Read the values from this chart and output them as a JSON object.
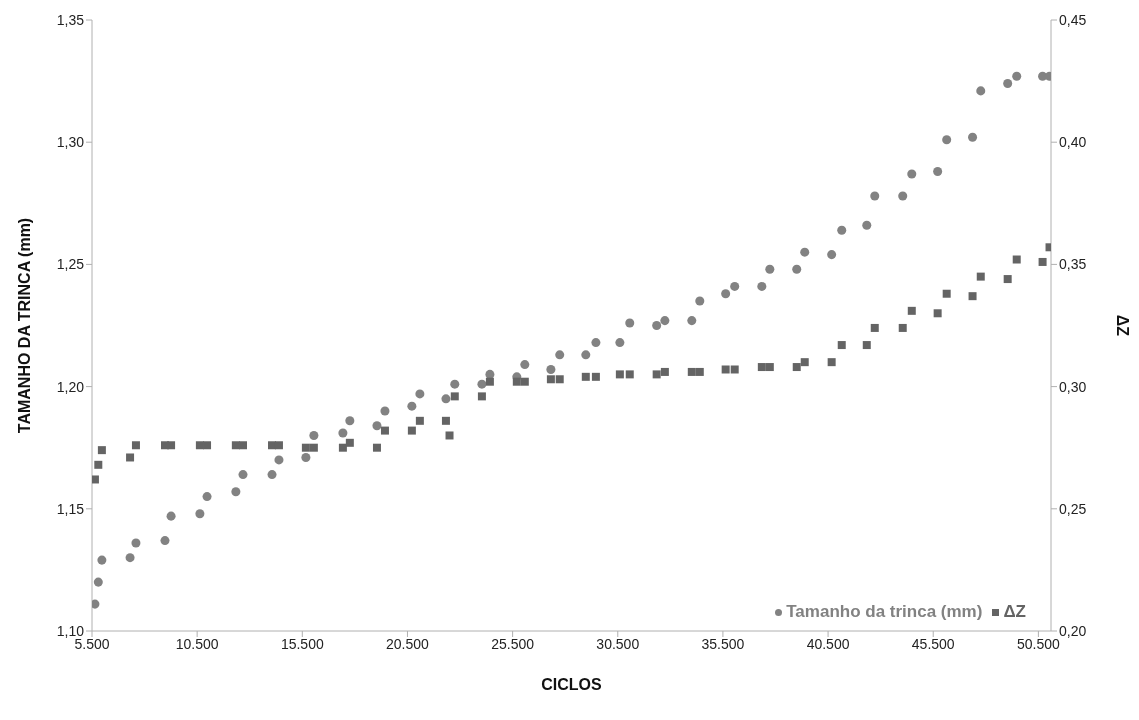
{
  "chart_data": {
    "type": "scatter",
    "xlabel": "CICLOS",
    "ylabel": "TAMANHO DA TRINCA (mm)",
    "y2label": "ΔZ",
    "xlim": [
      5500,
      51100
    ],
    "xticks": [
      {
        "value": 5500,
        "label": "5.500"
      },
      {
        "value": 10500,
        "label": "10.500"
      },
      {
        "value": 15500,
        "label": "15.500"
      },
      {
        "value": 20500,
        "label": "20.500"
      },
      {
        "value": 25500,
        "label": "25.500"
      },
      {
        "value": 30500,
        "label": "30.500"
      },
      {
        "value": 35500,
        "label": "35.500"
      },
      {
        "value": 40500,
        "label": "40.500"
      },
      {
        "value": 45500,
        "label": "45.500"
      },
      {
        "value": 50500,
        "label": "50.500"
      }
    ],
    "ylim": [
      1.1,
      1.35
    ],
    "yticks": [
      {
        "value": 1.1,
        "label": "1,10"
      },
      {
        "value": 1.15,
        "label": "1,15"
      },
      {
        "value": 1.2,
        "label": "1,20"
      },
      {
        "value": 1.25,
        "label": "1,25"
      },
      {
        "value": 1.3,
        "label": "1,30"
      },
      {
        "value": 1.35,
        "label": "1,35"
      }
    ],
    "y2lim": [
      0.2,
      0.45
    ],
    "y2ticks": [
      {
        "value": 0.2,
        "label": "0,20"
      },
      {
        "value": 0.25,
        "label": "0,25"
      },
      {
        "value": 0.3,
        "label": "0,30"
      },
      {
        "value": 0.35,
        "label": "0,35"
      },
      {
        "value": 0.4,
        "label": "0,40"
      },
      {
        "value": 0.45,
        "label": "0,45"
      }
    ],
    "grid": false,
    "legend": "bottom right",
    "series": [
      {
        "name": "Tamanho da trinca (mm)",
        "color": "#828282",
        "marker": "circle",
        "x": [
          5640,
          5800,
          5970,
          7310,
          7590,
          8970,
          9260,
          10630,
          10970,
          12340,
          12680,
          14060,
          14390,
          15670,
          16050,
          17430,
          17760,
          19050,
          19430,
          20710,
          21090,
          22330,
          22750,
          24040,
          24420,
          25700,
          26080,
          27320,
          27740,
          28980,
          29460,
          30600,
          31070,
          32350,
          32740,
          34020,
          34400,
          35630,
          36060,
          37350,
          37730,
          39010,
          39390,
          40670,
          41150,
          42340,
          42720,
          44050,
          44480,
          45710,
          46140,
          47370,
          47760,
          49040,
          49470,
          50700,
          51030
        ],
        "values": [
          1.111,
          1.12,
          1.129,
          1.13,
          1.136,
          1.137,
          1.147,
          1.148,
          1.155,
          1.157,
          1.164,
          1.164,
          1.17,
          1.171,
          1.18,
          1.181,
          1.186,
          1.184,
          1.19,
          1.192,
          1.197,
          1.195,
          1.201,
          1.201,
          1.205,
          1.204,
          1.209,
          1.207,
          1.213,
          1.213,
          1.218,
          1.218,
          1.226,
          1.225,
          1.227,
          1.227,
          1.235,
          1.238,
          1.241,
          1.241,
          1.248,
          1.248,
          1.255,
          1.254,
          1.264,
          1.266,
          1.278,
          1.278,
          1.287,
          1.288,
          1.301,
          1.302,
          1.321,
          1.324,
          1.327,
          1.327,
          1.327
        ]
      },
      {
        "name": "ΔZ",
        "color": "#646464",
        "marker": "square",
        "axis": "y2",
        "x": [
          5640,
          5800,
          5970,
          7310,
          7590,
          8970,
          9260,
          10630,
          10970,
          12340,
          12680,
          14060,
          14390,
          15670,
          16050,
          17430,
          17760,
          19050,
          19430,
          20710,
          21090,
          22330,
          22500,
          22750,
          24040,
          24420,
          25700,
          26080,
          27320,
          27740,
          28980,
          29460,
          30600,
          31070,
          32350,
          32740,
          34020,
          34400,
          35630,
          36060,
          37350,
          37730,
          39010,
          39390,
          40670,
          41150,
          42340,
          42720,
          44050,
          44480,
          45710,
          46140,
          47370,
          47760,
          49040,
          49470,
          50700,
          51030
        ],
        "values": [
          0.262,
          0.268,
          0.274,
          0.271,
          0.276,
          0.276,
          0.276,
          0.276,
          0.276,
          0.276,
          0.276,
          0.276,
          0.276,
          0.275,
          0.275,
          0.275,
          0.277,
          0.275,
          0.282,
          0.282,
          0.286,
          0.286,
          0.28,
          0.296,
          0.296,
          0.302,
          0.302,
          0.302,
          0.303,
          0.303,
          0.304,
          0.304,
          0.305,
          0.305,
          0.305,
          0.306,
          0.306,
          0.306,
          0.307,
          0.307,
          0.308,
          0.308,
          0.308,
          0.31,
          0.31,
          0.317,
          0.317,
          0.324,
          0.324,
          0.331,
          0.33,
          0.338,
          0.337,
          0.345,
          0.344,
          0.352,
          0.351,
          0.357
        ]
      }
    ]
  }
}
